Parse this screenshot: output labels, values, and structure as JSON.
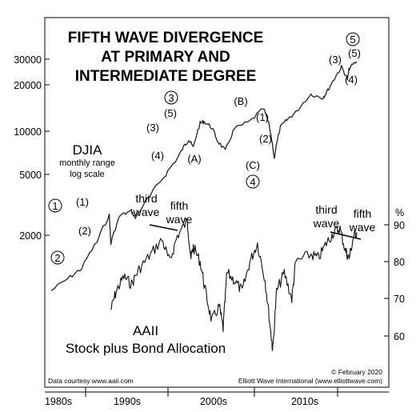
{
  "chart_data": {
    "type": "line",
    "title": [
      "FIFTH WAVE DIVERGENCE",
      "AT PRIMARY AND",
      "INTERMEDIATE DEGREE"
    ],
    "x_ticks": [
      "1980s",
      "1990s",
      "2000s",
      "2010s"
    ],
    "grid": false,
    "left_axis": {
      "scale": "log",
      "ticks": [
        "30000",
        "20000",
        "10000",
        "5000",
        "2000"
      ],
      "tick_values": [
        30000,
        20000,
        10000,
        5000,
        2000
      ]
    },
    "right_axis": {
      "unit": "%",
      "ticks": [
        "90",
        "80",
        "70",
        "60"
      ],
      "tick_values": [
        90,
        80,
        70,
        60
      ]
    },
    "series": [
      {
        "label": "DJIA",
        "sublabel": [
          "monthly range",
          "log scale"
        ],
        "color": "#222222",
        "x": [
          1980,
          1982.5,
          1984,
          1986,
          1987.6,
          1987.8,
          1989,
          1990.5,
          1991,
          1993,
          1995,
          1996.5,
          1997.5,
          1998,
          1998.6,
          1999.5,
          2000,
          2001,
          2001.8,
          2002.8,
          2004,
          2006,
          2007.8,
          2008.5,
          2009.2,
          2010,
          2011,
          2012,
          2014,
          2015.5,
          2016,
          2017,
          2018,
          2018.8,
          2019,
          2020
        ],
        "y": [
          850,
          1050,
          1200,
          1800,
          2700,
          1750,
          2700,
          2900,
          2600,
          3700,
          5100,
          6500,
          8000,
          8700,
          7700,
          11200,
          11500,
          10500,
          8500,
          7300,
          10300,
          11500,
          14000,
          11000,
          6600,
          10500,
          12000,
          13200,
          17500,
          16500,
          17800,
          22000,
          26500,
          22000,
          26000,
          29000
        ]
      },
      {
        "label": "AAII",
        "sublabel": [
          "Stock plus Bond Allocation"
        ],
        "color": "#111111",
        "x": [
          1987.8,
          1988.5,
          1989.5,
          1990.5,
          1991.5,
          1993,
          1994.5,
          1995.5,
          1996.5,
          1997.8,
          1998.3,
          1998.6,
          1999.5,
          2000.2,
          2001,
          2002,
          2002.5,
          2003,
          2004,
          2005,
          2006,
          2007,
          2008,
          2008.7,
          2009,
          2009.5,
          2010.5,
          2011.5,
          2012,
          2014,
          2015,
          2016,
          2017,
          2017.8,
          2018.5,
          2019,
          2019.6,
          2020
        ],
        "y": [
          67,
          72,
          76,
          74,
          78,
          82,
          86,
          80,
          87,
          91,
          81,
          84,
          80,
          72,
          64,
          68,
          62,
          77,
          75,
          72,
          80,
          85,
          75,
          62,
          56,
          72,
          77,
          70,
          80,
          82,
          81,
          85,
          88,
          89,
          83,
          81,
          87,
          88
        ]
      }
    ],
    "annotations": {
      "djia_waves": [
        "1",
        "2",
        "(1)",
        "(2)",
        "(3)",
        "(4)",
        "(5)",
        "3",
        "(A)",
        "(B)",
        "(1)",
        "(2)",
        "(C)",
        "4",
        "(3)",
        "(4)",
        "(5)",
        "5"
      ],
      "aaii_labels": [
        [
          "third",
          "wave"
        ],
        [
          "fifth",
          "wave"
        ],
        [
          "third",
          "wave"
        ],
        [
          "fifth",
          "wave"
        ]
      ]
    },
    "credits": {
      "left": "Data courtesy www.aaii.com",
      "right_date": "© February 2020",
      "right_org": "Elliott Wave International (www.elliottwave.com)"
    }
  }
}
